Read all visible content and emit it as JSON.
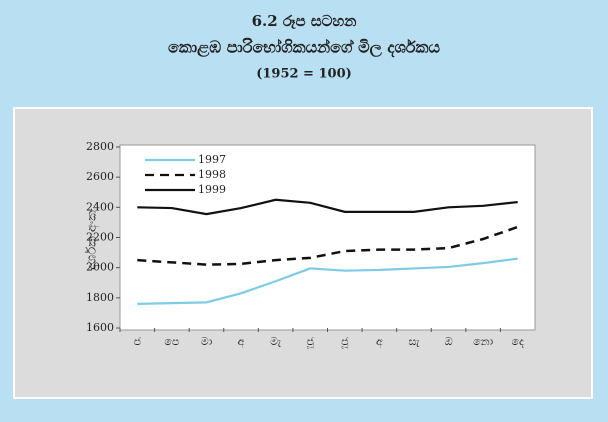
{
  "chart_data": {
    "type": "line",
    "title": "6.2 රූප සටහන",
    "subtitle": "කොළඹ පාරිභෝගිකයන්ගේ මිල දර්ශකය",
    "note": "(1952 = 100)",
    "y_label": "දර්ශක අංක",
    "categories": [
      "ජ",
      "පෙ",
      "මා",
      "අ",
      "මැ",
      "ජූ",
      "ජූ",
      "අ",
      "සැ",
      "ඔ",
      "නො",
      "දෙ"
    ],
    "series": [
      {
        "name": "1997",
        "color": "#7fcbe6",
        "style": "solid",
        "values": [
          1760,
          1765,
          1770,
          1830,
          1910,
          1995,
          1980,
          1985,
          1995,
          2005,
          2030,
          2060
        ]
      },
      {
        "name": "1998",
        "color": "#111111",
        "style": "dashed",
        "values": [
          2050,
          2035,
          2020,
          2025,
          2050,
          2065,
          2110,
          2120,
          2120,
          2130,
          2190,
          2270
        ]
      },
      {
        "name": "1999",
        "color": "#111111",
        "style": "solid",
        "values": [
          2400,
          2395,
          2355,
          2395,
          2450,
          2430,
          2370,
          2370,
          2370,
          2400,
          2410,
          2435
        ]
      }
    ],
    "ylim": [
      1600,
      2800
    ],
    "yticks": [
      1600,
      1800,
      2000,
      2200,
      2400,
      2600,
      2800
    ],
    "legend": "upper left"
  }
}
